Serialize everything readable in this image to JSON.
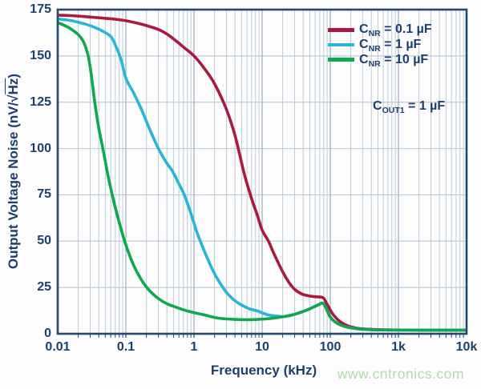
{
  "watermark": "www.cntronics.com",
  "chart_data": {
    "type": "line",
    "title": "",
    "xlabel": "Frequency (kHz)",
    "ylabel": {
      "pre": "Output Voltage Noise (nV/√",
      "over": "Hz",
      "post": ")"
    },
    "x_scale": "log",
    "xlog_range": [
      -2,
      4
    ],
    "ylim": [
      0,
      175
    ],
    "grid": {
      "h_step": 25,
      "v_minor_log": true
    },
    "legend_position": "top-right-inside",
    "xticks": [
      {
        "label": "0.01",
        "f": 0.01
      },
      {
        "label": "0.1",
        "f": 0.1
      },
      {
        "label": "1",
        "f": 1
      },
      {
        "label": "10",
        "f": 10
      },
      {
        "label": "100",
        "f": 100
      },
      {
        "label": "1k",
        "f": 1000
      },
      {
        "label": "10k",
        "f": 10000
      }
    ],
    "yticks": [
      {
        "label": "0",
        "v": 0
      },
      {
        "label": "25",
        "v": 25
      },
      {
        "label": "50",
        "v": 50
      },
      {
        "label": "75",
        "v": 75
      },
      {
        "label": "100",
        "v": 100
      },
      {
        "label": "125",
        "v": 125
      },
      {
        "label": "150",
        "v": 150
      },
      {
        "label": "175",
        "v": 175
      }
    ],
    "annotation": {
      "pre": "C",
      "sub": "OUT1",
      "rest": " = 1 µF"
    },
    "colors": {
      "bg": "#fdfdfd",
      "text_navy": "#1c3f6b",
      "frame": "#24496e",
      "grid_minor": "#bfcbd8",
      "grid_major": "#9fb1c3",
      "watermark_green": "#b2dcaa"
    },
    "series": [
      {
        "name": "CNR = 0.1 uF",
        "slug": "cnr-0p1uf",
        "label": {
          "pre": "C",
          "sub": "NR",
          "rest": " = 0.1 µF"
        },
        "color": "#ab1a3e",
        "points": [
          [
            0.01,
            172
          ],
          [
            0.015,
            171.8
          ],
          [
            0.02,
            171.5
          ],
          [
            0.03,
            171
          ],
          [
            0.05,
            170.3
          ],
          [
            0.07,
            169.8
          ],
          [
            0.1,
            169
          ],
          [
            0.15,
            167.6
          ],
          [
            0.2,
            166.4
          ],
          [
            0.3,
            164.3
          ],
          [
            0.4,
            161.8
          ],
          [
            0.55,
            158
          ],
          [
            0.7,
            154.8
          ],
          [
            1,
            150
          ],
          [
            1.4,
            143.5
          ],
          [
            2,
            135
          ],
          [
            3,
            121
          ],
          [
            4,
            107
          ],
          [
            5.5,
            86
          ],
          [
            7,
            73
          ],
          [
            8.5,
            64
          ],
          [
            10,
            56
          ],
          [
            12.4,
            50
          ],
          [
            15,
            43
          ],
          [
            20,
            33.5
          ],
          [
            25,
            27.5
          ],
          [
            30,
            24
          ],
          [
            38,
            21.5
          ],
          [
            48,
            20.5
          ],
          [
            60,
            20
          ],
          [
            72,
            19.8
          ],
          [
            80,
            19.2
          ],
          [
            88,
            16.5
          ],
          [
            100,
            12.8
          ],
          [
            115,
            9.5
          ],
          [
            140,
            6.5
          ],
          [
            180,
            4.3
          ],
          [
            250,
            3
          ],
          [
            400,
            2.4
          ],
          [
            700,
            2.1
          ],
          [
            2000,
            2
          ],
          [
            10000,
            2
          ]
        ]
      },
      {
        "name": "CNR = 1 uF",
        "slug": "cnr-1uf",
        "label": {
          "pre": "C",
          "sub": "NR",
          "rest": " = 1 µF"
        },
        "color": "#29b4d8",
        "points": [
          [
            0.01,
            170
          ],
          [
            0.015,
            169.2
          ],
          [
            0.02,
            168.2
          ],
          [
            0.03,
            166.3
          ],
          [
            0.045,
            163.5
          ],
          [
            0.06,
            160.5
          ],
          [
            0.07,
            156
          ],
          [
            0.085,
            148
          ],
          [
            0.1,
            138
          ],
          [
            0.13,
            130
          ],
          [
            0.17,
            121
          ],
          [
            0.22,
            111
          ],
          [
            0.3,
            100
          ],
          [
            0.4,
            92
          ],
          [
            0.48,
            88
          ],
          [
            0.6,
            81
          ],
          [
            0.72,
            75
          ],
          [
            0.9,
            65
          ],
          [
            1.1,
            55
          ],
          [
            1.24,
            50
          ],
          [
            1.6,
            40
          ],
          [
            2.1,
            31
          ],
          [
            2.9,
            23
          ],
          [
            3.8,
            18.5
          ],
          [
            5,
            15.5
          ],
          [
            6.5,
            13.5
          ],
          [
            8.5,
            12.3
          ],
          [
            12,
            10.3
          ],
          [
            16,
            9.6
          ],
          [
            20,
            9.3
          ],
          [
            25,
            9.7
          ],
          [
            32,
            10.8
          ],
          [
            40,
            12
          ],
          [
            50,
            13.5
          ],
          [
            60,
            14.9
          ],
          [
            70,
            16
          ],
          [
            77,
            16.6
          ],
          [
            84,
            14.8
          ],
          [
            92,
            11.8
          ],
          [
            100,
            9
          ],
          [
            115,
            6.7
          ],
          [
            140,
            4.8
          ],
          [
            180,
            3.5
          ],
          [
            250,
            2.7
          ],
          [
            400,
            2.2
          ],
          [
            700,
            2.05
          ],
          [
            2000,
            2
          ],
          [
            10000,
            2
          ]
        ]
      },
      {
        "name": "CNR = 10 uF",
        "slug": "cnr-10uf",
        "label": {
          "pre": "C",
          "sub": "NR",
          "rest": " = 10 µF"
        },
        "color": "#10a84e",
        "points": [
          [
            0.01,
            168
          ],
          [
            0.013,
            166.2
          ],
          [
            0.016,
            164.3
          ],
          [
            0.02,
            161.5
          ],
          [
            0.024,
            157.5
          ],
          [
            0.028,
            150
          ],
          [
            0.031,
            140
          ],
          [
            0.035,
            125
          ],
          [
            0.04,
            111
          ],
          [
            0.046,
            100
          ],
          [
            0.055,
            85
          ],
          [
            0.065,
            73
          ],
          [
            0.08,
            60
          ],
          [
            0.1,
            48
          ],
          [
            0.13,
            37
          ],
          [
            0.17,
            29
          ],
          [
            0.22,
            23.5
          ],
          [
            0.3,
            19
          ],
          [
            0.4,
            16.2
          ],
          [
            0.55,
            14.3
          ],
          [
            0.75,
            12.6
          ],
          [
            1,
            11.4
          ],
          [
            1.5,
            10
          ],
          [
            2,
            8.8
          ],
          [
            3,
            8
          ],
          [
            4.5,
            7.7
          ],
          [
            6,
            7.6
          ],
          [
            8,
            7.7
          ],
          [
            11,
            8
          ],
          [
            15,
            8.5
          ],
          [
            21,
            9.3
          ],
          [
            29,
            10.4
          ],
          [
            38,
            11.8
          ],
          [
            48,
            13.2
          ],
          [
            60,
            14.8
          ],
          [
            70,
            16
          ],
          [
            77,
            16.6
          ],
          [
            84,
            14.8
          ],
          [
            92,
            11.8
          ],
          [
            100,
            9
          ],
          [
            115,
            6.7
          ],
          [
            140,
            4.8
          ],
          [
            180,
            3.5
          ],
          [
            250,
            2.7
          ],
          [
            400,
            2.2
          ],
          [
            700,
            2.05
          ],
          [
            2000,
            2
          ],
          [
            10000,
            2
          ]
        ]
      }
    ]
  }
}
